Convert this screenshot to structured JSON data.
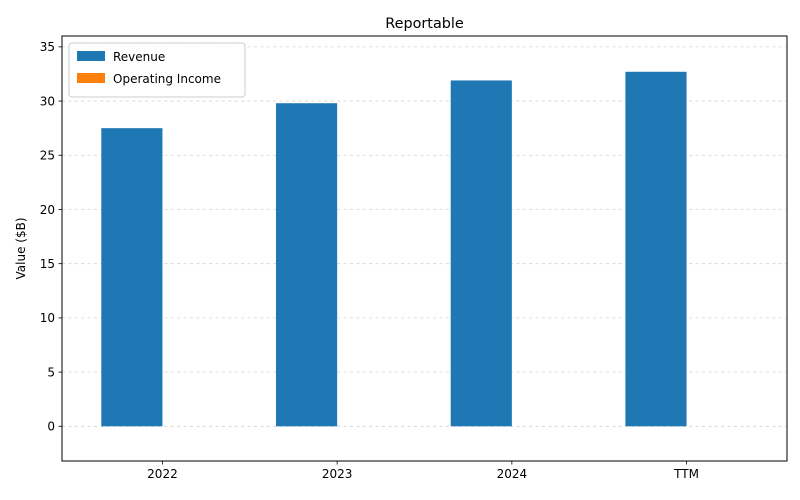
{
  "chart_data": {
    "type": "bar",
    "title": "Reportable",
    "xlabel": "",
    "ylabel": "Value ($B)",
    "categories": [
      "2022",
      "2023",
      "2024",
      "TTM"
    ],
    "series": [
      {
        "name": "Revenue",
        "color": "#1f77b4",
        "values": [
          27.5,
          29.8,
          31.9,
          32.7
        ]
      },
      {
        "name": "Operating Income",
        "color": "#ff7f0e",
        "values": [
          0,
          0,
          0,
          0
        ]
      }
    ],
    "ylim": [
      -3.2,
      36.0
    ],
    "yticks": [
      0,
      5,
      10,
      15,
      20,
      25,
      30,
      35
    ],
    "grid": true,
    "legend_position": "top-left"
  }
}
